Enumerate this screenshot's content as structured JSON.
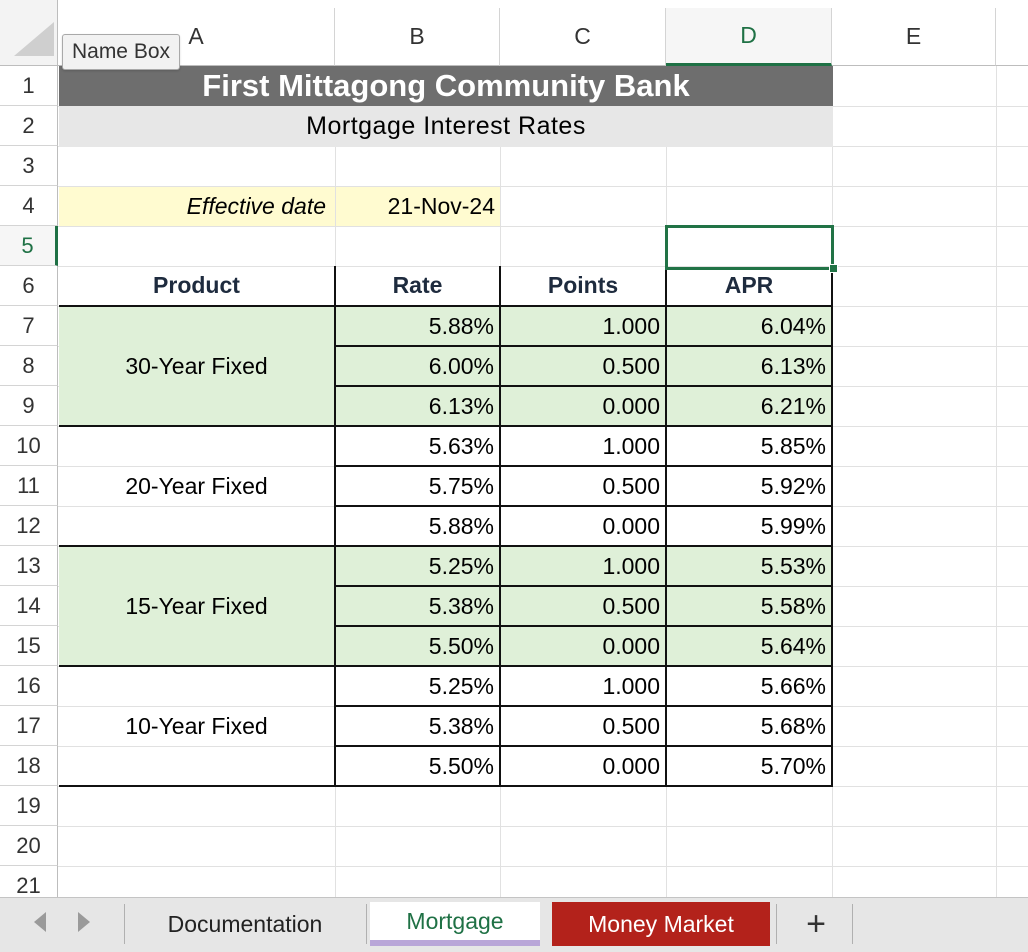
{
  "name_box": {
    "label": "Name Box"
  },
  "columns": [
    "A",
    "B",
    "C",
    "D",
    "E"
  ],
  "rows": [
    "1",
    "2",
    "3",
    "4",
    "5",
    "6",
    "7",
    "8",
    "9",
    "10",
    "11",
    "12",
    "13",
    "14",
    "15",
    "16",
    "17",
    "18",
    "19",
    "20",
    "21"
  ],
  "selected_cell": {
    "column": "D",
    "row": "5"
  },
  "sheet": {
    "title": "First Mittagong Community Bank",
    "subtitle": "Mortgage Interest Rates",
    "effective_label": "Effective date",
    "effective_value": "21-Nov-24",
    "headers": {
      "product": "Product",
      "rate": "Rate",
      "points": "Points",
      "apr": "APR"
    },
    "products": [
      {
        "name": "30-Year Fixed",
        "shaded": true,
        "rows": [
          {
            "rate": "5.88%",
            "points": "1.000",
            "apr": "6.04%"
          },
          {
            "rate": "6.00%",
            "points": "0.500",
            "apr": "6.13%"
          },
          {
            "rate": "6.13%",
            "points": "0.000",
            "apr": "6.21%"
          }
        ]
      },
      {
        "name": "20-Year Fixed",
        "shaded": false,
        "rows": [
          {
            "rate": "5.63%",
            "points": "1.000",
            "apr": "5.85%"
          },
          {
            "rate": "5.75%",
            "points": "0.500",
            "apr": "5.92%"
          },
          {
            "rate": "5.88%",
            "points": "0.000",
            "apr": "5.99%"
          }
        ]
      },
      {
        "name": "15-Year Fixed",
        "shaded": true,
        "rows": [
          {
            "rate": "5.25%",
            "points": "1.000",
            "apr": "5.53%"
          },
          {
            "rate": "5.38%",
            "points": "0.500",
            "apr": "5.58%"
          },
          {
            "rate": "5.50%",
            "points": "0.000",
            "apr": "5.64%"
          }
        ]
      },
      {
        "name": "10-Year Fixed",
        "shaded": false,
        "rows": [
          {
            "rate": "5.25%",
            "points": "1.000",
            "apr": "5.66%"
          },
          {
            "rate": "5.38%",
            "points": "0.500",
            "apr": "5.68%"
          },
          {
            "rate": "5.50%",
            "points": "0.000",
            "apr": "5.70%"
          }
        ]
      }
    ]
  },
  "tabs": [
    {
      "label": "Documentation",
      "state": "inactive"
    },
    {
      "label": "Mortgage",
      "state": "active"
    },
    {
      "label": "Money Market",
      "state": "colored",
      "color": "#b3221b"
    }
  ],
  "add_sheet_label": "+",
  "colors": {
    "title_bg": "#6e6e6e",
    "subtitle_bg": "#e7e7e7",
    "highlight_yellow": "#fffbd0",
    "shade_green": "#dff0d8",
    "selection_green": "#217346"
  }
}
